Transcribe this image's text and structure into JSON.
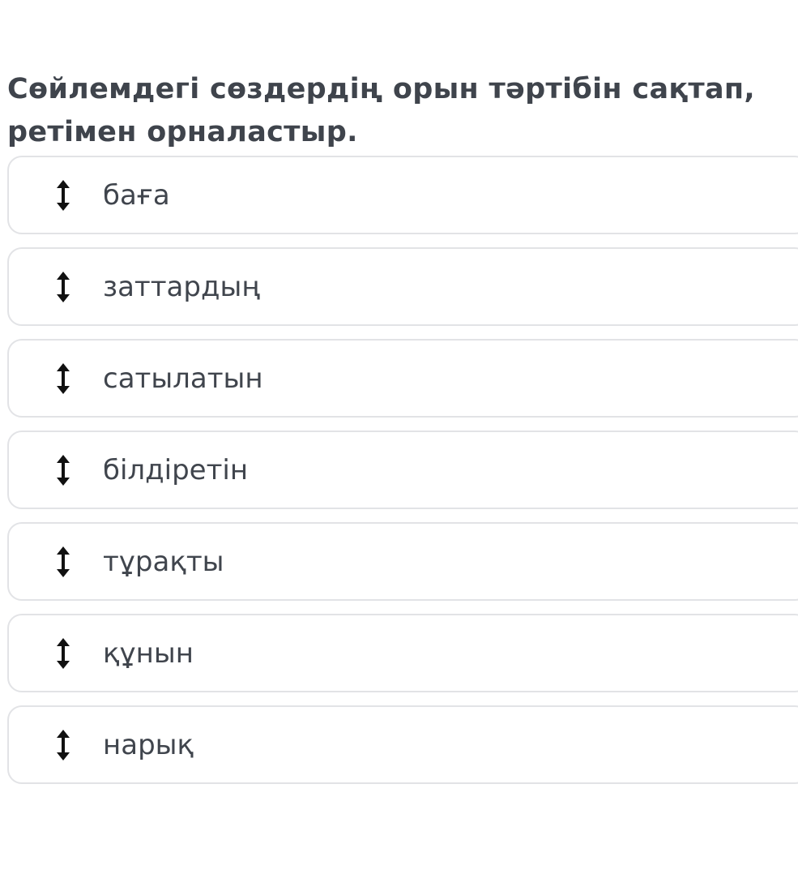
{
  "question": {
    "title": "Сөйлемдегі сөздердің орын тәртібін сақтап, ретімен орналастыр."
  },
  "items": [
    {
      "label": "баға",
      "icon": "vertical-arrows-icon"
    },
    {
      "label": "заттардың",
      "icon": "vertical-arrows-icon"
    },
    {
      "label": "сатылатын",
      "icon": "vertical-arrows-icon"
    },
    {
      "label": "білдіретін",
      "icon": "vertical-arrows-icon"
    },
    {
      "label": "тұрақты",
      "icon": "vertical-arrows-icon"
    },
    {
      "label": "құнын",
      "icon": "vertical-arrows-icon"
    },
    {
      "label": "нарық",
      "icon": "vertical-arrows-icon"
    }
  ]
}
